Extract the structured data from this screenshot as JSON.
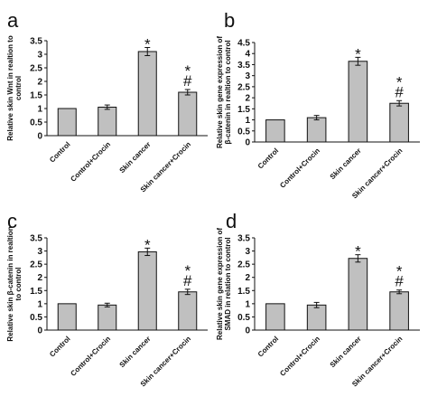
{
  "chart_data": [
    {
      "type": "bar",
      "panel_label": "a",
      "categories": [
        "Control",
        "Control+Crocin",
        "Skin cancer",
        "Skin cancer+Crocin"
      ],
      "values": [
        1.0,
        1.05,
        3.1,
        1.6
      ],
      "errors": [
        0.0,
        0.08,
        0.15,
        0.1
      ],
      "annotations": [
        "",
        "",
        "*",
        "*\n#"
      ],
      "ylabel": [
        "Relative skin Wnt in realtion to",
        "control"
      ],
      "ylim": [
        0,
        3.5
      ],
      "yticks": [
        0,
        0.5,
        1,
        1.5,
        2,
        2.5,
        3,
        3.5
      ],
      "yticklabels": [
        "0",
        "0.5",
        "1",
        "1.5",
        "2",
        "2.5",
        "3",
        "3.5"
      ]
    },
    {
      "type": "bar",
      "panel_label": "b",
      "categories": [
        "Control",
        "Control+Crocin",
        "Skin cancer",
        "Skin cancer+Crocin"
      ],
      "values": [
        1.0,
        1.1,
        3.65,
        1.75
      ],
      "errors": [
        0.0,
        0.1,
        0.18,
        0.12
      ],
      "annotations": [
        "",
        "",
        "*",
        "*\n#"
      ],
      "ylabel": [
        "Relative skin gene expression of",
        "β-catenin in realtion to control"
      ],
      "ylim": [
        0,
        4.5
      ],
      "yticks": [
        0,
        0.5,
        1,
        1.5,
        2,
        2.5,
        3,
        3.5,
        4,
        4.5
      ],
      "yticklabels": [
        "0",
        "0.5",
        "1",
        "1.5",
        "2",
        "2.5",
        "3",
        "3.5",
        "4",
        "4.5"
      ]
    },
    {
      "type": "bar",
      "panel_label": "c",
      "categories": [
        "Control",
        "Control+Crocin",
        "Skin cancer",
        "Skin cancer+Crocin"
      ],
      "values": [
        1.0,
        0.95,
        2.97,
        1.45
      ],
      "errors": [
        0.0,
        0.07,
        0.14,
        0.1
      ],
      "annotations": [
        "",
        "",
        "*",
        "*\n#"
      ],
      "ylabel": [
        "Relative skin β-catenin in realtion",
        "to control"
      ],
      "ylim": [
        0,
        3.5
      ],
      "yticks": [
        0,
        0.5,
        1,
        1.5,
        2,
        2.5,
        3,
        3.5
      ],
      "yticklabels": [
        "0",
        "0.5",
        "1",
        "1.5",
        "2",
        "2.5",
        "3",
        "3.5"
      ]
    },
    {
      "type": "bar",
      "panel_label": "d",
      "categories": [
        "Control",
        "Control+Crocin",
        "Skin cancer",
        "Skin cancer+Crocin"
      ],
      "values": [
        1.0,
        0.95,
        2.72,
        1.45
      ],
      "errors": [
        0.0,
        0.1,
        0.14,
        0.07
      ],
      "annotations": [
        "",
        "",
        "*",
        "*\n#"
      ],
      "ylabel": [
        "Relative skin gene expression of",
        "SMAD in relation to control"
      ],
      "ylim": [
        0,
        3.5
      ],
      "yticks": [
        0,
        0.5,
        1,
        1.5,
        2,
        2.5,
        3,
        3.5
      ],
      "yticklabels": [
        "0",
        "0.5",
        "1",
        "1.5",
        "2",
        "2.5",
        "3",
        "3.5"
      ]
    }
  ],
  "colors": {
    "bar_fill": "#c0c0c0",
    "bar_stroke": "#111111",
    "axis": "#111111"
  }
}
